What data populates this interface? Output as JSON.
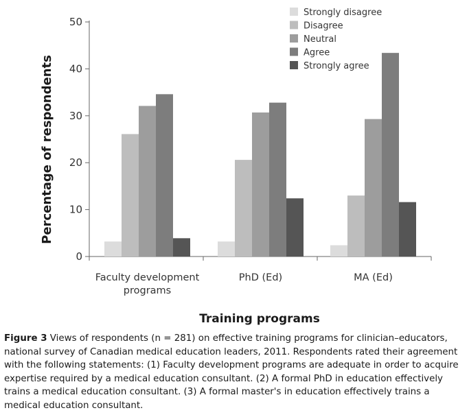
{
  "chart_data": {
    "type": "bar",
    "categories": [
      [
        "Faculty development",
        "programs"
      ],
      [
        "PhD (Ed)"
      ],
      [
        "MA (Ed)"
      ]
    ],
    "series": [
      {
        "name": "Strongly disagree",
        "color": "#dcdcdc",
        "values": [
          3.2,
          3.2,
          2.4
        ]
      },
      {
        "name": "Disagree",
        "color": "#bdbdbd",
        "values": [
          26.1,
          20.6,
          13.0
        ]
      },
      {
        "name": "Neutral",
        "color": "#9d9d9d",
        "values": [
          32.1,
          30.7,
          29.3
        ]
      },
      {
        "name": "Agree",
        "color": "#7d7d7d",
        "values": [
          34.6,
          32.8,
          43.4
        ]
      },
      {
        "name": "Strongly agree",
        "color": "#555555",
        "values": [
          3.9,
          12.4,
          11.6
        ]
      }
    ],
    "ylim": [
      0,
      50
    ],
    "yticks": [
      0,
      10,
      20,
      30,
      40,
      50
    ],
    "ylabel": "Percentage of respondents",
    "xlabel": "Training programs",
    "legend_position": "top-right",
    "grid": false
  },
  "caption": {
    "label": "Figure 3",
    "text": " Views of respondents (n = 281) on effective training programs for clinician–educators, national survey of Canadian medical education leaders, 2011. Respondents rated their agreement with the following statements: (1) Faculty development programs are adequate in order to acquire expertise required by a medical education consultant. (2) A formal PhD in education effectively trains a medical education consultant. (3) A formal master's in education effectively trains a medical education consultant."
  }
}
